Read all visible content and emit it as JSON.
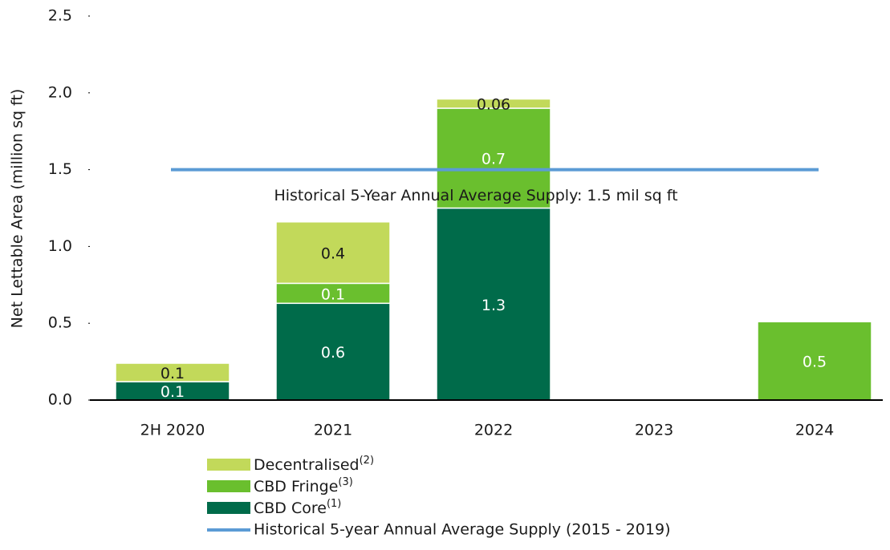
{
  "chart_data": {
    "type": "stacked_bar",
    "ylabel": "Net Lettable Area (million sq ft)",
    "categories": [
      "2H 2020",
      "2021",
      "2022",
      "2023",
      "2024"
    ],
    "series": [
      {
        "name": "CBD Core",
        "superscript": "(1)",
        "color": "#006b4a",
        "values": [
          0.12,
          0.63,
          1.25,
          null,
          null
        ],
        "value_labels": [
          "0.1",
          "0.6",
          "1.3",
          null,
          null
        ]
      },
      {
        "name": "CBD Fringe",
        "superscript": "(3)",
        "color": "#6abf2e",
        "values": [
          null,
          0.13,
          0.65,
          null,
          0.51
        ],
        "value_labels": [
          null,
          "0.1",
          "0.7",
          null,
          "0.5"
        ]
      },
      {
        "name": "Decentralised",
        "superscript": "(2)",
        "color": "#c2d95a",
        "values": [
          0.12,
          0.4,
          0.06,
          null,
          null
        ],
        "value_labels": [
          "0.1",
          "0.4",
          "0.06",
          null,
          null
        ]
      }
    ],
    "reference_line": {
      "name": "Historical 5-year Annual Average Supply (2015 - 2019)",
      "value": 1.5,
      "color": "#5b9bd5",
      "label": "Historical 5-Year Annual Average Supply: 1.5 mil sq ft"
    },
    "ylim": [
      0,
      2.5
    ],
    "yticks": [
      {
        "value": 0,
        "label": "0.0"
      },
      0.5,
      {
        "value": 1,
        "label": "1.0"
      },
      1.5,
      {
        "value": 2,
        "label": "2.0"
      },
      2.5
    ]
  }
}
